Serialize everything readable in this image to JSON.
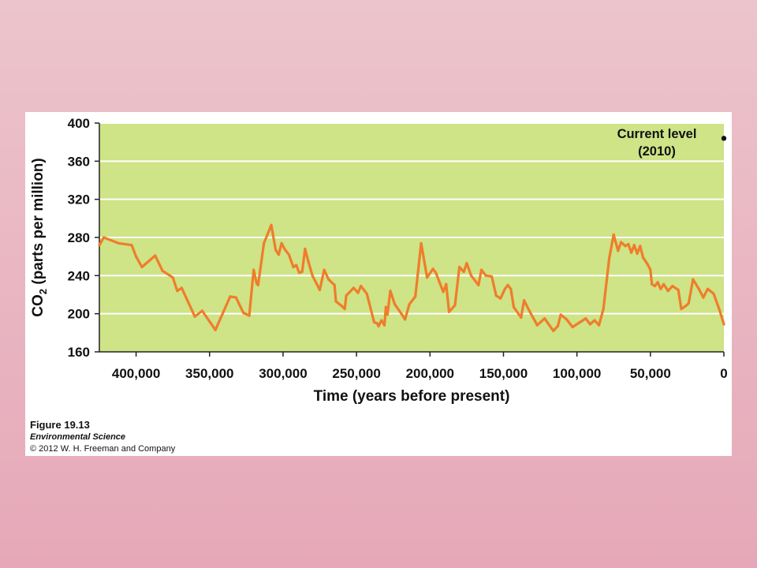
{
  "chart_data": {
    "type": "line",
    "xlabel": "Time (years before present)",
    "ylabel": "CO2 (parts per million)",
    "ylabel_main": "CO",
    "ylabel_sub": "2",
    "ylabel_rest": " (parts per million)",
    "xlim": [
      425000,
      0
    ],
    "ylim": [
      160,
      400
    ],
    "x_ticks": [
      400000,
      350000,
      300000,
      250000,
      200000,
      150000,
      100000,
      50000,
      0
    ],
    "x_tick_labels": [
      "400,000",
      "350,000",
      "300,000",
      "250,000",
      "200,000",
      "150,000",
      "100,000",
      "50,000",
      "0"
    ],
    "y_ticks": [
      160,
      200,
      240,
      280,
      320,
      360,
      400
    ],
    "y_tick_labels": [
      "160",
      "200",
      "240",
      "280",
      "320",
      "360",
      "400"
    ],
    "grid": true,
    "colors": {
      "plot_bg": "#cfe387",
      "line": "#ef7d2b",
      "grid": "#ffffff"
    },
    "annotation": {
      "line1": "Current level",
      "line2": "(2010)",
      "x": 0,
      "y": 384
    },
    "series": [
      {
        "values": [
          [
            425000,
            272
          ],
          [
            422000,
            280
          ],
          [
            412000,
            274
          ],
          [
            403000,
            272
          ],
          [
            400000,
            260
          ],
          [
            396000,
            249
          ],
          [
            387000,
            261
          ],
          [
            382000,
            245
          ],
          [
            375000,
            238
          ],
          [
            372000,
            224
          ],
          [
            369000,
            227
          ],
          [
            360000,
            197
          ],
          [
            355000,
            203
          ],
          [
            346000,
            183
          ],
          [
            336000,
            218
          ],
          [
            332000,
            217
          ],
          [
            327000,
            201
          ],
          [
            323000,
            198
          ],
          [
            320000,
            246
          ],
          [
            318000,
            232
          ],
          [
            317000,
            230
          ],
          [
            313000,
            274
          ],
          [
            308000,
            293
          ],
          [
            305000,
            267
          ],
          [
            303000,
            262
          ],
          [
            301000,
            274
          ],
          [
            299000,
            268
          ],
          [
            296000,
            262
          ],
          [
            293000,
            249
          ],
          [
            291000,
            251
          ],
          [
            289000,
            243
          ],
          [
            287000,
            244
          ],
          [
            285000,
            268
          ],
          [
            283000,
            256
          ],
          [
            280000,
            240
          ],
          [
            275000,
            225
          ],
          [
            272000,
            246
          ],
          [
            269000,
            236
          ],
          [
            265000,
            230
          ],
          [
            264000,
            213
          ],
          [
            260000,
            208
          ],
          [
            258000,
            205
          ],
          [
            257000,
            219
          ],
          [
            252000,
            227
          ],
          [
            249000,
            222
          ],
          [
            247000,
            229
          ],
          [
            243000,
            221
          ],
          [
            238000,
            191
          ],
          [
            236000,
            190
          ],
          [
            235000,
            187
          ],
          [
            233000,
            193
          ],
          [
            231000,
            188
          ],
          [
            230000,
            207
          ],
          [
            229000,
            199
          ],
          [
            227000,
            224
          ],
          [
            224000,
            210
          ],
          [
            219000,
            199
          ],
          [
            217000,
            194
          ],
          [
            214000,
            210
          ],
          [
            210000,
            218
          ],
          [
            206000,
            274
          ],
          [
            202000,
            238
          ],
          [
            198000,
            247
          ],
          [
            196000,
            243
          ],
          [
            191000,
            223
          ],
          [
            189000,
            231
          ],
          [
            187000,
            202
          ],
          [
            183000,
            209
          ],
          [
            180000,
            249
          ],
          [
            177000,
            244
          ],
          [
            175000,
            253
          ],
          [
            172000,
            240
          ],
          [
            167000,
            230
          ],
          [
            165000,
            246
          ],
          [
            162000,
            240
          ],
          [
            158000,
            239
          ],
          [
            155000,
            219
          ],
          [
            152000,
            216
          ],
          [
            149000,
            226
          ],
          [
            147000,
            230
          ],
          [
            145000,
            226
          ],
          [
            143000,
            207
          ],
          [
            138000,
            196
          ],
          [
            136000,
            214
          ],
          [
            132000,
            202
          ],
          [
            127000,
            188
          ],
          [
            122000,
            195
          ],
          [
            116000,
            182
          ],
          [
            113000,
            187
          ],
          [
            111000,
            199
          ],
          [
            107000,
            194
          ],
          [
            103000,
            186
          ],
          [
            98000,
            191
          ],
          [
            96000,
            193
          ],
          [
            94000,
            195
          ],
          [
            91000,
            189
          ],
          [
            88000,
            193
          ],
          [
            85000,
            188
          ],
          [
            82000,
            205
          ],
          [
            78000,
            258
          ],
          [
            75000,
            283
          ],
          [
            72000,
            266
          ],
          [
            70000,
            275
          ],
          [
            67000,
            271
          ],
          [
            65000,
            273
          ],
          [
            63000,
            264
          ],
          [
            61000,
            272
          ],
          [
            59000,
            263
          ],
          [
            57000,
            271
          ],
          [
            55000,
            259
          ],
          [
            52000,
            252
          ],
          [
            50000,
            246
          ],
          [
            49000,
            231
          ],
          [
            47000,
            229
          ],
          [
            45000,
            233
          ],
          [
            43000,
            226
          ],
          [
            41000,
            231
          ],
          [
            38000,
            224
          ],
          [
            35000,
            229
          ],
          [
            31000,
            225
          ],
          [
            29000,
            205
          ],
          [
            26000,
            208
          ],
          [
            24000,
            211
          ],
          [
            21000,
            236
          ],
          [
            17000,
            226
          ],
          [
            14000,
            217
          ],
          [
            11000,
            226
          ],
          [
            7000,
            221
          ],
          [
            3000,
            204
          ],
          [
            0,
            189
          ]
        ]
      }
    ]
  },
  "figure": {
    "title": "Figure 19.13",
    "book": "Environmental Science",
    "copyright": "© 2012 W. H. Freeman and Company"
  }
}
